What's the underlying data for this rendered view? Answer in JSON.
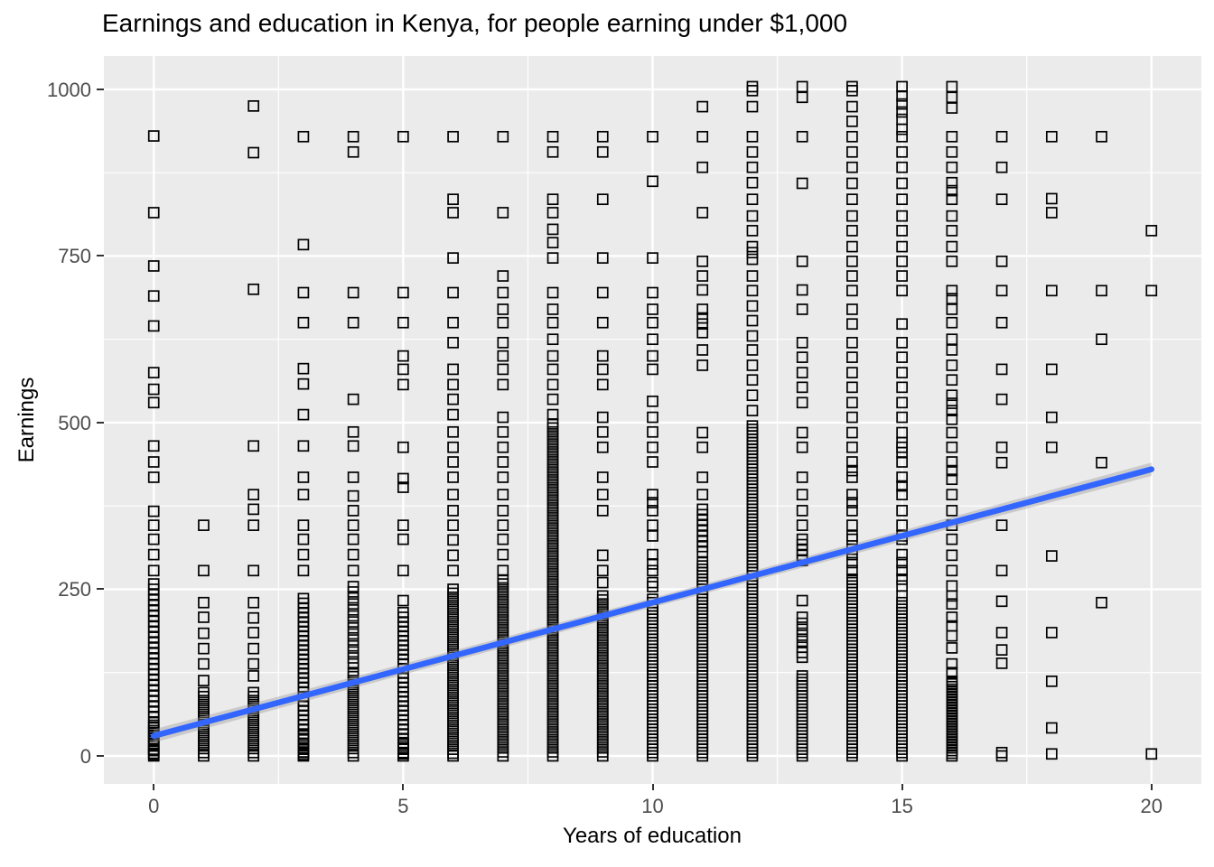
{
  "chart_data": {
    "type": "scatter",
    "title": "Earnings and education in Kenya, for people earning under $1,000",
    "xlabel": "Years of education",
    "ylabel": "Earnings",
    "xlim": [
      -1,
      21
    ],
    "ylim": [
      -42,
      1050
    ],
    "x_ticks": [
      0,
      5,
      10,
      15,
      20
    ],
    "y_ticks": [
      0,
      250,
      500,
      750,
      1000
    ],
    "x_minor": [
      2.5,
      7.5,
      12.5,
      17.5
    ],
    "y_minor": [
      125,
      375,
      625,
      875
    ],
    "grid": "white major and minor gridlines on gray panel",
    "legend": "none",
    "marker": "open-square",
    "points": [
      {
        "x": 0,
        "ys": [
          930,
          815,
          735,
          690,
          645,
          575,
          550,
          530,
          465,
          441,
          418,
          367,
          346,
          325,
          302,
          278,
          [
            258,
            2,
            8
          ],
          46,
          38,
          30,
          22,
          15,
          8,
          4,
          0
        ]
      },
      {
        "x": 1,
        "ys": [
          346,
          278,
          230,
          208,
          184,
          161,
          138,
          113,
          [
            95,
            5,
            6
          ],
          0
        ]
      },
      {
        "x": 2,
        "ys": [
          975,
          905,
          700,
          465,
          392,
          370,
          346,
          278,
          230,
          207,
          185,
          161,
          138,
          120,
          [
            95,
            5,
            6
          ],
          0
        ]
      },
      {
        "x": 3,
        "ys": [
          929,
          767,
          695,
          650,
          581,
          558,
          512,
          465,
          418,
          392,
          346,
          325,
          302,
          278,
          [
            236,
            5,
            7
          ],
          30,
          24,
          18,
          10,
          6,
          2,
          0
        ]
      },
      {
        "x": 4,
        "ys": [
          929,
          906,
          695,
          650,
          535,
          486,
          465,
          418,
          390,
          368,
          346,
          325,
          302,
          278,
          254,
          [
            246,
            138,
            9
          ],
          [
            125,
            5,
            6
          ],
          0
        ]
      },
      {
        "x": 5,
        "ys": [
          929,
          695,
          650,
          600,
          580,
          557,
          463,
          416,
          403,
          346,
          325,
          278,
          233,
          [
            215,
            5,
            7
          ],
          20,
          15,
          10,
          3,
          0
        ]
      },
      {
        "x": 6,
        "ys": [
          929,
          835,
          815,
          747,
          695,
          650,
          620,
          580,
          557,
          535,
          512,
          486,
          463,
          441,
          418,
          392,
          368,
          346,
          324,
          301,
          278,
          [
            250,
            4,
            6
          ],
          0
        ]
      },
      {
        "x": 7,
        "ys": [
          929,
          815,
          720,
          695,
          670,
          650,
          620,
          600,
          580,
          557,
          508,
          486,
          463,
          441,
          418,
          392,
          368,
          346,
          325,
          302,
          278,
          [
            264,
            0,
            6
          ]
        ]
      },
      {
        "x": 8,
        "ys": [
          929,
          906,
          835,
          815,
          790,
          770,
          747,
          695,
          670,
          650,
          625,
          600,
          580,
          557,
          535,
          512,
          [
            498,
            0,
            6
          ]
        ]
      },
      {
        "x": 9,
        "ys": [
          929,
          906,
          835,
          747,
          695,
          650,
          600,
          580,
          557,
          508,
          486,
          463,
          418,
          392,
          368,
          301,
          278,
          260,
          [
            240,
            0,
            6
          ]
        ]
      },
      {
        "x": 10,
        "ys": [
          929,
          862,
          747,
          695,
          670,
          650,
          625,
          600,
          580,
          532,
          508,
          486,
          463,
          441,
          392,
          380,
          368,
          346,
          330,
          302,
          288,
          278,
          260,
          254,
          [
            235,
            0,
            5
          ]
        ]
      },
      {
        "x": 11,
        "ys": [
          974,
          929,
          883,
          815,
          742,
          720,
          699,
          670,
          657,
          648,
          635,
          609,
          586,
          485,
          463,
          418,
          392,
          [
            370,
            300,
            8
          ],
          [
            290,
            0,
            5
          ]
        ]
      },
      {
        "x": 12,
        "ys": [
          1004,
          998,
          974,
          929,
          906,
          883,
          860,
          835,
          810,
          788,
          764,
          755,
          745,
          720,
          698,
          675,
          653,
          630,
          609,
          586,
          564,
          541,
          518,
          [
            495,
            0,
            5
          ]
        ]
      },
      {
        "x": 13,
        "ys": [
          1004,
          988,
          929,
          859,
          742,
          699,
          670,
          620,
          598,
          575,
          553,
          530,
          485,
          463,
          418,
          392,
          368,
          346,
          [
            325,
            288,
            8
          ],
          233,
          208,
          199,
          190,
          181,
          172,
          163,
          155,
          148,
          [
            120,
            0,
            5
          ]
        ]
      },
      {
        "x": 14,
        "ys": [
          1004,
          998,
          974,
          952,
          929,
          906,
          883,
          859,
          835,
          810,
          788,
          764,
          742,
          720,
          698,
          670,
          648,
          620,
          598,
          575,
          553,
          530,
          508,
          485,
          463,
          441,
          428,
          418,
          392,
          380,
          368,
          346,
          330,
          325,
          310,
          302,
          290,
          278,
          [
            265,
            0,
            5
          ]
        ]
      },
      {
        "x": 15,
        "ys": [
          1004,
          990,
          978,
          966,
          955,
          940,
          929,
          906,
          883,
          859,
          835,
          810,
          788,
          764,
          742,
          720,
          698,
          648,
          620,
          598,
          575,
          553,
          530,
          508,
          485,
          470,
          463,
          455,
          441,
          418,
          405,
          392,
          368,
          346,
          330,
          325,
          302,
          290,
          278,
          265,
          255,
          240,
          [
            230,
            0,
            5
          ]
        ]
      },
      {
        "x": 16,
        "ys": [
          1004,
          988,
          972,
          929,
          906,
          883,
          860,
          848,
          835,
          810,
          788,
          764,
          742,
          698,
          686,
          670,
          650,
          625,
          609,
          586,
          564,
          541,
          529,
          518,
          505,
          485,
          463,
          441,
          428,
          415,
          392,
          368,
          346,
          325,
          301,
          278,
          255,
          240,
          228,
          208,
          195,
          180,
          162,
          138,
          125,
          [
            112,
            0,
            4
          ]
        ]
      },
      {
        "x": 17,
        "ys": [
          929,
          883,
          835,
          742,
          698,
          650,
          580,
          535,
          463,
          440,
          346,
          278,
          232,
          185,
          159,
          139,
          5,
          0
        ]
      },
      {
        "x": 18,
        "ys": [
          929,
          836,
          815,
          698,
          580,
          508,
          463,
          300,
          185,
          112,
          42,
          3
        ]
      },
      {
        "x": 19,
        "ys": [
          929,
          698,
          625,
          440,
          230
        ]
      },
      {
        "x": 20,
        "ys": [
          788,
          698,
          3
        ]
      }
    ],
    "smooth": {
      "method": "linear",
      "x": [
        0,
        20
      ],
      "y": [
        30,
        430
      ],
      "band": {
        "x": [
          0,
          5,
          10,
          15,
          20
        ],
        "lo": [
          20,
          122,
          223,
          322,
          420
        ],
        "hi": [
          40,
          138,
          237,
          338,
          440
        ]
      }
    }
  },
  "colors": {
    "background": "#FFFFFF",
    "panel": "#EBEBEB",
    "grid": "#FFFFFF",
    "point": "#000000",
    "trend": "#3366FF",
    "band": "#999999",
    "tick_label": "#4D4D4D",
    "tick_mark": "#333333",
    "text": "#000000"
  }
}
